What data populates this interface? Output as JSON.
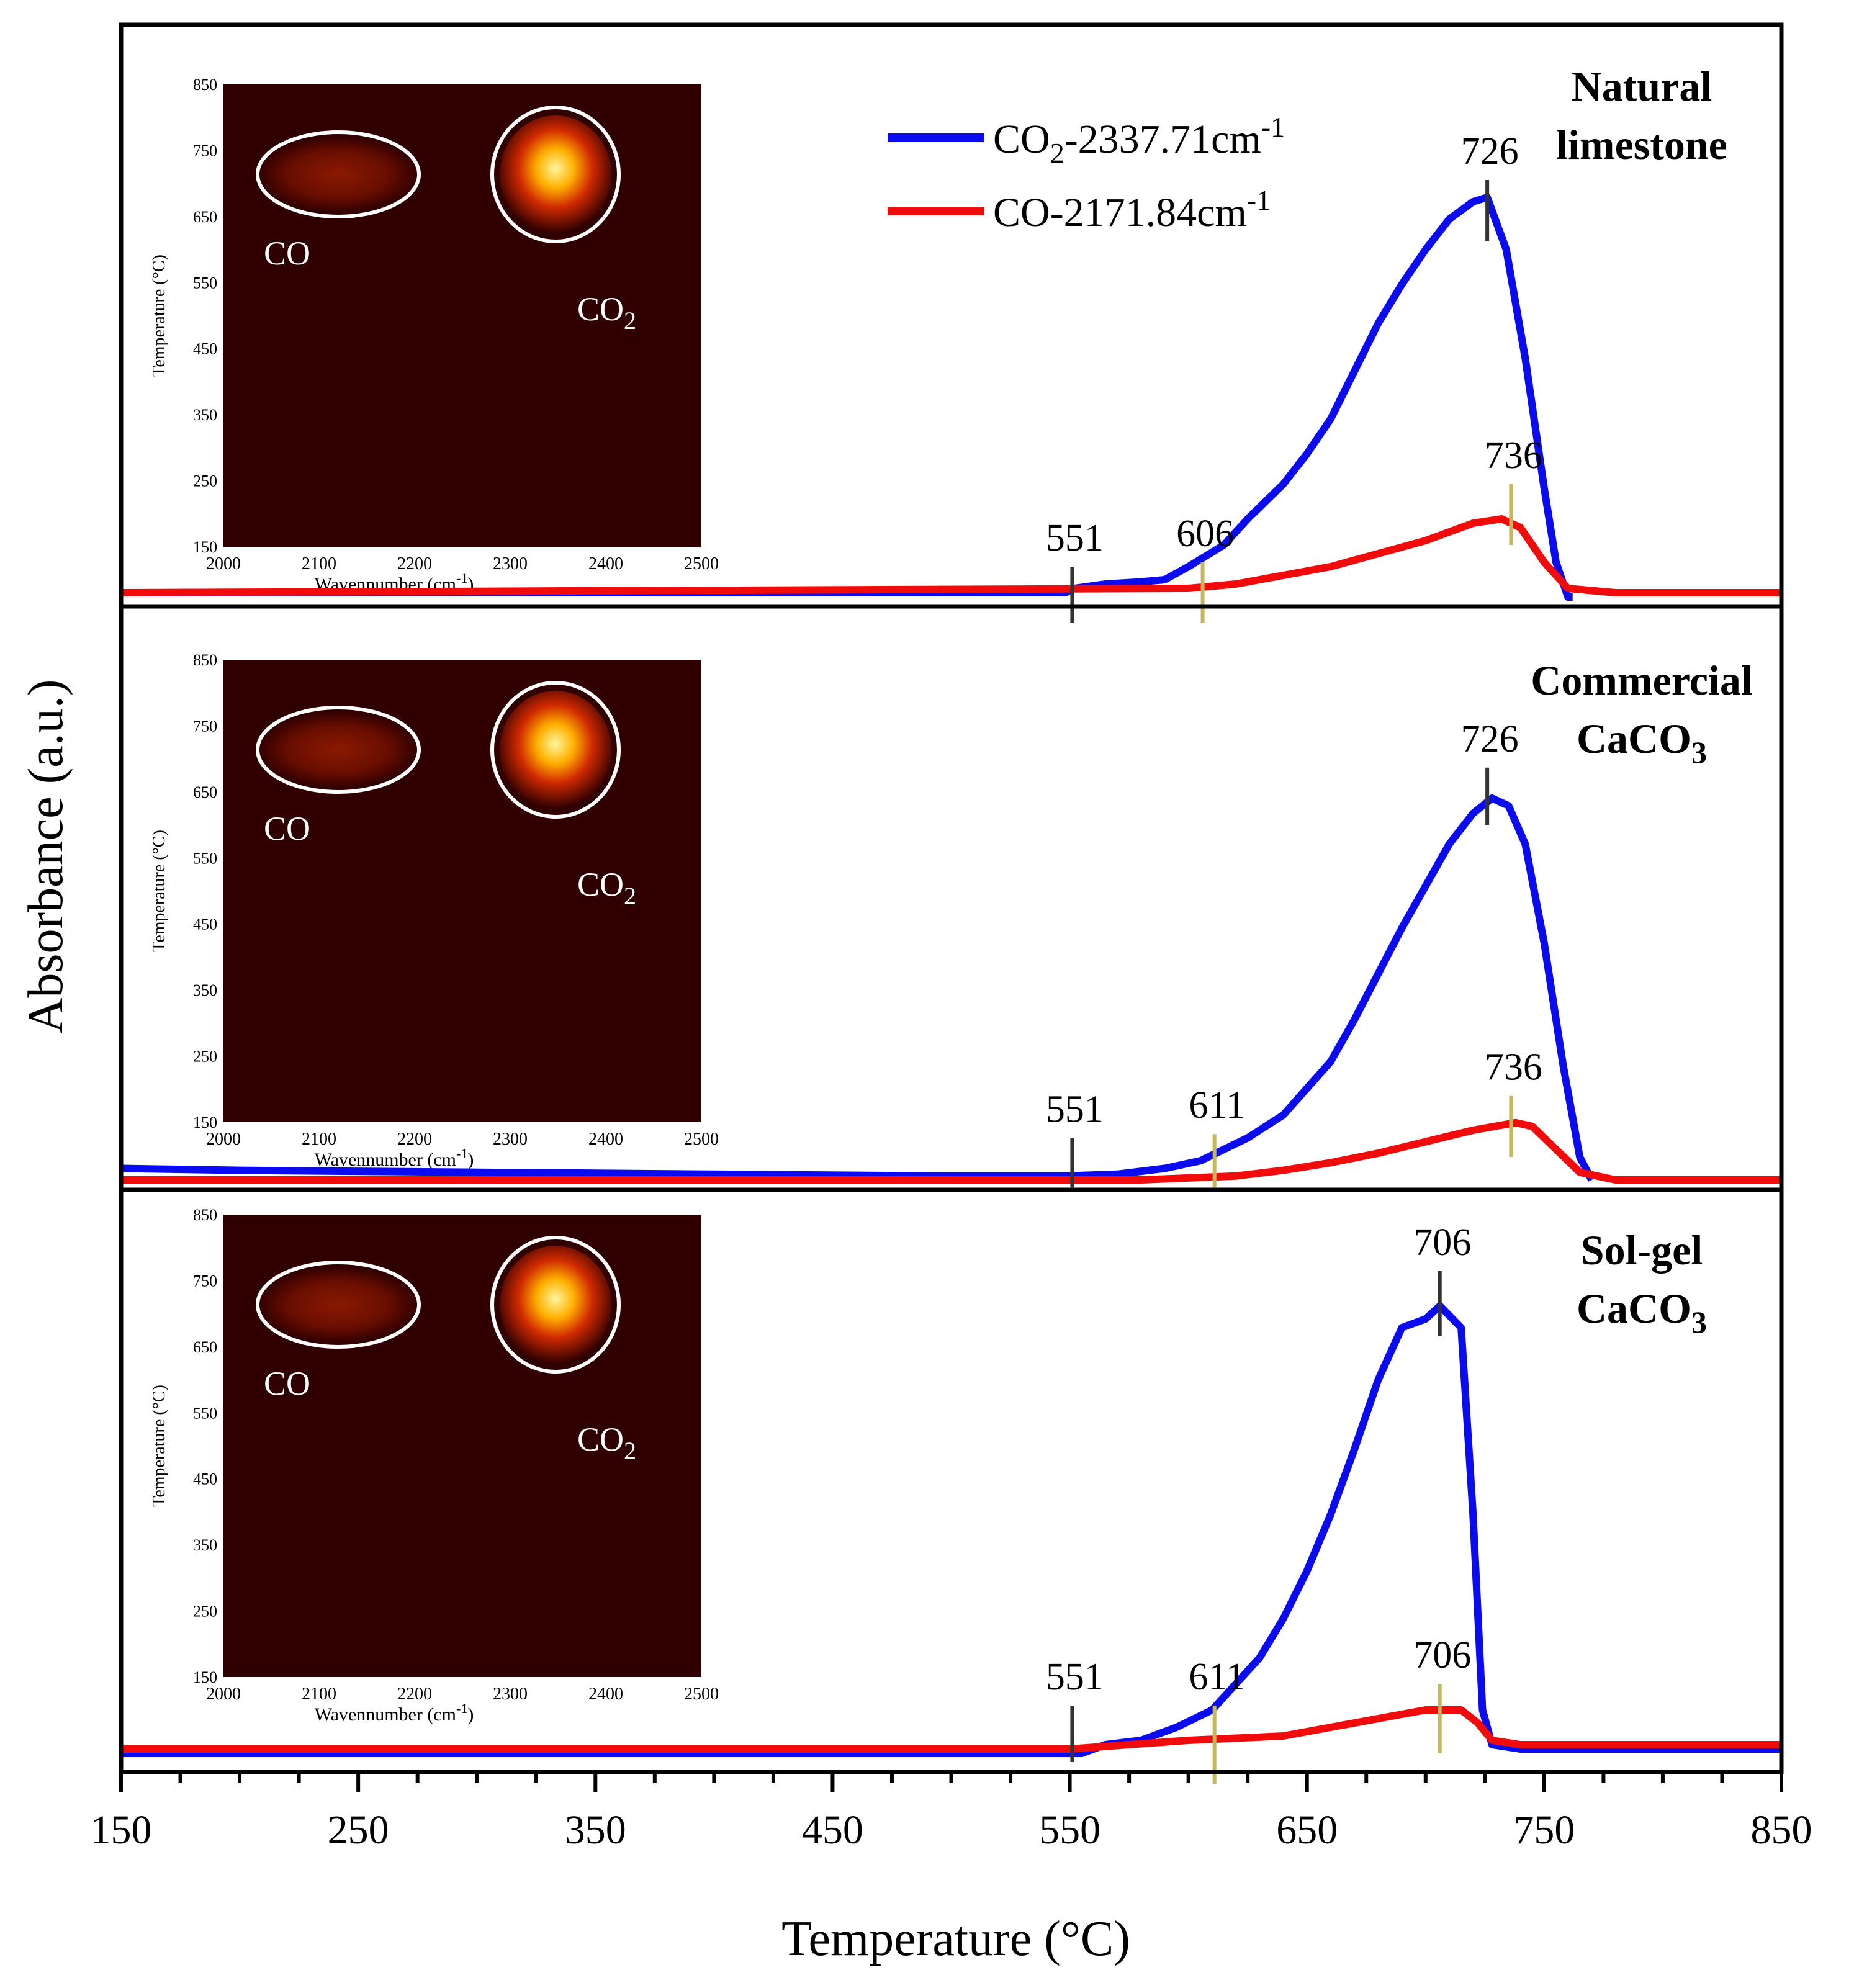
{
  "chart_data": {
    "type": "line",
    "xlabel": "Temperature (°C)",
    "ylabel": "Absorbance (a.u.)",
    "xlim": [
      150,
      850
    ],
    "x_ticks": [
      "150",
      "250",
      "350",
      "450",
      "550",
      "650",
      "750",
      "850"
    ],
    "legend": {
      "placement": "top-center",
      "entries": [
        {
          "series": "co2",
          "base": "CO",
          "sub": "2",
          "rest": "-2337.71cm",
          "sup": "-1",
          "color": "#0b0bf2"
        },
        {
          "series": "co",
          "base": "CO",
          "sub": "",
          "rest": "-2171.84cm",
          "sup": "-1",
          "color": "#f20b0b"
        }
      ]
    },
    "colors": {
      "co2": "#0b0bf2",
      "co": "#f20b0b",
      "marker_dark": "#333333",
      "marker_olive": "#c4b85a",
      "heatmap_bg": "#300000"
    },
    "panels": [
      {
        "name": "natural-limestone",
        "label": [
          "Natural",
          "limestone"
        ],
        "label_sub": "",
        "co2": [
          [
            150,
            0.01
          ],
          [
            548,
            0.01
          ],
          [
            552,
            0.02
          ],
          [
            565,
            0.03
          ],
          [
            580,
            0.035
          ],
          [
            590,
            0.04
          ],
          [
            600,
            0.07
          ],
          [
            615,
            0.12
          ],
          [
            625,
            0.18
          ],
          [
            640,
            0.26
          ],
          [
            650,
            0.33
          ],
          [
            660,
            0.41
          ],
          [
            670,
            0.52
          ],
          [
            680,
            0.63
          ],
          [
            690,
            0.72
          ],
          [
            700,
            0.8
          ],
          [
            710,
            0.87
          ],
          [
            720,
            0.91
          ],
          [
            726,
            0.92
          ],
          [
            734,
            0.8
          ],
          [
            742,
            0.55
          ],
          [
            750,
            0.25
          ],
          [
            755,
            0.08
          ],
          [
            760,
            0.0
          ],
          [
            762,
            0.0
          ]
        ],
        "co": [
          [
            150,
            0.01
          ],
          [
            600,
            0.02
          ],
          [
            620,
            0.03
          ],
          [
            640,
            0.05
          ],
          [
            660,
            0.07
          ],
          [
            680,
            0.1
          ],
          [
            700,
            0.13
          ],
          [
            720,
            0.17
          ],
          [
            732,
            0.18
          ],
          [
            740,
            0.16
          ],
          [
            750,
            0.08
          ],
          [
            760,
            0.02
          ],
          [
            780,
            0.01
          ],
          [
            850,
            0.01
          ]
        ],
        "markers": [
          {
            "x": 551,
            "label": "551",
            "kind": "dark",
            "y0": -0.06,
            "y1": 0.07
          },
          {
            "x": 606,
            "label": "606",
            "kind": "olive",
            "y0": -0.06,
            "y1": 0.08
          },
          {
            "x": 726,
            "label": "726",
            "kind": "dark",
            "y0": 0.82,
            "y1": 0.96
          },
          {
            "x": 736,
            "label": "736",
            "kind": "olive",
            "y0": 0.12,
            "y1": 0.26
          }
        ],
        "inset": {
          "ylabel": "Temperature (°C)",
          "xlabel_base": "Wavennumber (cm",
          "xlabel_sup": "-1",
          "xlabel_end": ")",
          "x_ticks": [
            "2000",
            "2100",
            "2200",
            "2300",
            "2400",
            "2500"
          ],
          "y_ticks": [
            "850",
            "750",
            "650",
            "550",
            "450",
            "350",
            "250",
            "150"
          ],
          "co_label": "CO",
          "co2_base": "CO",
          "co2_sub": "2"
        }
      },
      {
        "name": "commercial-caco3",
        "label": [
          "Commercial",
          "CaCO"
        ],
        "label_sub": "3",
        "co2": [
          [
            150,
            0.03
          ],
          [
            200,
            0.025
          ],
          [
            300,
            0.02
          ],
          [
            400,
            0.015
          ],
          [
            500,
            0.01
          ],
          [
            548,
            0.01
          ],
          [
            570,
            0.015
          ],
          [
            590,
            0.03
          ],
          [
            605,
            0.05
          ],
          [
            615,
            0.08
          ],
          [
            625,
            0.11
          ],
          [
            640,
            0.17
          ],
          [
            650,
            0.24
          ],
          [
            660,
            0.31
          ],
          [
            670,
            0.42
          ],
          [
            680,
            0.54
          ],
          [
            690,
            0.66
          ],
          [
            700,
            0.77
          ],
          [
            710,
            0.88
          ],
          [
            720,
            0.96
          ],
          [
            728,
            1.0
          ],
          [
            735,
            0.98
          ],
          [
            742,
            0.88
          ],
          [
            750,
            0.62
          ],
          [
            758,
            0.3
          ],
          [
            765,
            0.06
          ],
          [
            770,
            0.0
          ]
        ],
        "co": [
          [
            150,
            0.0
          ],
          [
            580,
            0.0
          ],
          [
            620,
            0.01
          ],
          [
            640,
            0.025
          ],
          [
            660,
            0.045
          ],
          [
            680,
            0.07
          ],
          [
            700,
            0.1
          ],
          [
            720,
            0.13
          ],
          [
            738,
            0.15
          ],
          [
            745,
            0.14
          ],
          [
            755,
            0.08
          ],
          [
            765,
            0.02
          ],
          [
            780,
            0.0
          ],
          [
            850,
            0.0
          ]
        ],
        "markers": [
          {
            "x": 551,
            "label": "551",
            "kind": "dark",
            "y0": -0.02,
            "y1": 0.11
          },
          {
            "x": 611,
            "label": "611",
            "kind": "olive",
            "y0": -0.02,
            "y1": 0.12
          },
          {
            "x": 726,
            "label": "726",
            "kind": "dark",
            "y0": 0.93,
            "y1": 1.08
          },
          {
            "x": 736,
            "label": "736",
            "kind": "olive",
            "y0": 0.06,
            "y1": 0.22
          }
        ],
        "inset": {
          "ylabel": "Temperature (°C)",
          "xlabel_base": "Wavennumber (cm",
          "xlabel_sup": "-1",
          "xlabel_end": ")",
          "x_ticks": [
            "2000",
            "2100",
            "2200",
            "2300",
            "2400",
            "2500"
          ],
          "y_ticks": [
            "850",
            "750",
            "650",
            "550",
            "450",
            "350",
            "250",
            "150"
          ],
          "co_label": "CO",
          "co2_base": "CO",
          "co2_sub": "2"
        }
      },
      {
        "name": "sol-gel-caco3",
        "label": [
          "Sol-gel",
          "CaCO"
        ],
        "label_sub": "3",
        "co2": [
          [
            150,
            0.0
          ],
          [
            548,
            0.0
          ],
          [
            555,
            0.0
          ],
          [
            565,
            0.02
          ],
          [
            580,
            0.03
          ],
          [
            595,
            0.06
          ],
          [
            610,
            0.1
          ],
          [
            620,
            0.16
          ],
          [
            630,
            0.22
          ],
          [
            640,
            0.31
          ],
          [
            650,
            0.42
          ],
          [
            660,
            0.55
          ],
          [
            670,
            0.7
          ],
          [
            680,
            0.86
          ],
          [
            690,
            0.98
          ],
          [
            700,
            1.0
          ],
          [
            706,
            1.03
          ],
          [
            715,
            0.98
          ],
          [
            720,
            0.55
          ],
          [
            724,
            0.1
          ],
          [
            728,
            0.02
          ],
          [
            740,
            0.01
          ],
          [
            850,
            0.01
          ]
        ],
        "co": [
          [
            150,
            0.01
          ],
          [
            550,
            0.01
          ],
          [
            600,
            0.03
          ],
          [
            640,
            0.04
          ],
          [
            660,
            0.06
          ],
          [
            680,
            0.08
          ],
          [
            700,
            0.1
          ],
          [
            715,
            0.1
          ],
          [
            722,
            0.07
          ],
          [
            728,
            0.03
          ],
          [
            740,
            0.02
          ],
          [
            850,
            0.02
          ]
        ],
        "markers": [
          {
            "x": 551,
            "label": "551",
            "kind": "dark",
            "y0": -0.02,
            "y1": 0.11
          },
          {
            "x": 611,
            "label": "611",
            "kind": "olive",
            "y0": -0.07,
            "y1": 0.11
          },
          {
            "x": 706,
            "label": "706",
            "kind": "dark",
            "y0": 0.96,
            "y1": 1.11
          },
          {
            "x": 706,
            "label": "706",
            "kind": "olive",
            "y0": 0.0,
            "y1": 0.16
          }
        ],
        "inset": {
          "ylabel": "Temperature (°C)",
          "xlabel_base": "Wavennumber (cm",
          "xlabel_sup": "-1",
          "xlabel_end": ")",
          "x_ticks": [
            "2000",
            "2100",
            "2200",
            "2300",
            "2400",
            "2500"
          ],
          "y_ticks": [
            "850",
            "750",
            "650",
            "550",
            "450",
            "350",
            "250",
            "150"
          ],
          "co_label": "CO",
          "co2_base": "CO",
          "co2_sub": "2"
        }
      }
    ]
  }
}
